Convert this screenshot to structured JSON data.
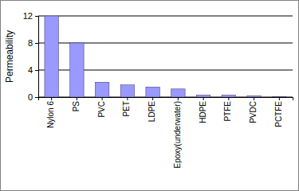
{
  "chart_data": {
    "type": "bar",
    "y_label": "Permeability",
    "categories": [
      "Nylon 6",
      "PS",
      "PVC",
      "PET",
      "LDPE",
      "Epoxy(underwater)",
      "HDPE",
      "PTFE",
      "PVDC",
      "PCTFE"
    ],
    "values": [
      12,
      8,
      2.2,
      1.8,
      1.5,
      1.2,
      0.3,
      0.3,
      0.2,
      0.05
    ],
    "color": "#9999ff",
    "ylim": [
      0,
      12
    ],
    "yticks": [
      0,
      4,
      8,
      12
    ],
    "grid": true
  }
}
